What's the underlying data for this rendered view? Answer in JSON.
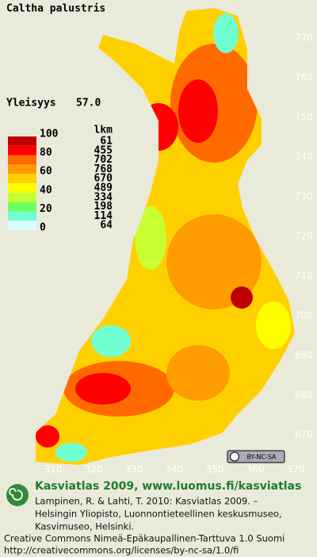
{
  "map": {
    "title": "Caltha palustris",
    "frequency_label": "Yleisyys",
    "frequency_value": "57.0",
    "legend": {
      "scale_labels": [
        "100",
        "80",
        "60",
        "40",
        "20",
        "0"
      ],
      "count_header": "lkm",
      "counts": [
        "61",
        "455",
        "702",
        "768",
        "670",
        "489",
        "334",
        "198",
        "114",
        "64"
      ],
      "colors": [
        "#c00000",
        "#ff0000",
        "#ff6a00",
        "#ff9c00",
        "#ffd000",
        "#ffff00",
        "#c8ff30",
        "#70ff60",
        "#70ffd0",
        "#d8ffff"
      ]
    },
    "y_ticks": [
      770,
      760,
      750,
      740,
      730,
      720,
      710,
      700,
      690,
      680,
      670
    ],
    "x_ticks": [
      310,
      320,
      330,
      340,
      350,
      360,
      370
    ],
    "license_badge": "BY-NC-SA"
  },
  "footer": {
    "heading": "Kasviatlas 2009, www.luomus.fi/kasviatlas",
    "citation": [
      "Lampinen, R. & Lahti, T. 2010: Kasviatlas 2009. –",
      "Helsingin Yliopisto, Luonnontieteellinen keskusmuseo,",
      "Kasvimuseo, Helsinki."
    ],
    "license": [
      "Creative Commons Nimeä-Epäkaupallinen-Tarttuva 1.0 Suomi",
      "http://creativecommons.org/licenses/by-nc-sa/1.0/fi"
    ]
  }
}
